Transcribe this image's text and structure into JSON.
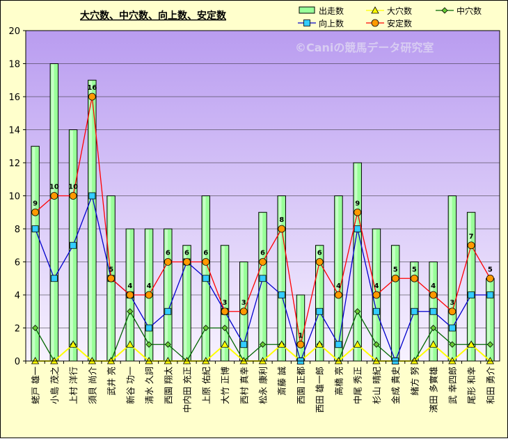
{
  "chart_data": {
    "type": "bar",
    "title": "大穴数、中穴数、向上数、安定数",
    "watermark": "©Caniの競馬データ研究室",
    "categories": [
      "蛯戸 雄一",
      "小島 茂之",
      "上村 洋行",
      "須貝 尚介",
      "武井 亮",
      "新谷 功一",
      "清水 久詞",
      "西園 翔太",
      "中内田 充正",
      "上原 佑紀",
      "大竹 正博",
      "西村 真幸",
      "松永 康利",
      "斎藤 誠",
      "西園 正都",
      "西田 雄一郎",
      "高橋 亮",
      "中尾 秀正",
      "杉山 晴紀",
      "金成 貴史",
      "緒方 努",
      "濱田 多實雄",
      "武 幸四郎",
      "尾形 和幸",
      "和田 勇介"
    ],
    "ylim": [
      0,
      20
    ],
    "yticks": [
      0,
      2,
      4,
      6,
      8,
      10,
      12,
      14,
      16,
      18,
      20
    ],
    "grid": true,
    "legend_position": "top-right",
    "series": [
      {
        "name": "出走数",
        "kind": "bar",
        "color": "#99ff99",
        "values": [
          13,
          18,
          14,
          17,
          10,
          8,
          8,
          8,
          7,
          10,
          7,
          6,
          9,
          10,
          4,
          7,
          10,
          12,
          8,
          7,
          6,
          6,
          10,
          9,
          5
        ]
      },
      {
        "name": "大穴数",
        "kind": "line",
        "color": "#ffff00",
        "marker": "triangle",
        "values": [
          0,
          0,
          1,
          0,
          0,
          1,
          0,
          0,
          0,
          0,
          1,
          0,
          0,
          1,
          0,
          1,
          0,
          1,
          0,
          0,
          0,
          1,
          0,
          1,
          0
        ]
      },
      {
        "name": "中穴数",
        "kind": "line",
        "color": "#006600",
        "marker": "diamond",
        "values": [
          2,
          0,
          1,
          0,
          0,
          3,
          1,
          1,
          0,
          2,
          2,
          0,
          1,
          1,
          0,
          1,
          0,
          3,
          1,
          0,
          0,
          2,
          1,
          1,
          1
        ]
      },
      {
        "name": "向上数",
        "kind": "line",
        "color": "#0000cc",
        "marker": "square",
        "values": [
          8,
          5,
          7,
          10,
          5,
          4,
          2,
          3,
          6,
          5,
          3,
          1,
          5,
          4,
          0,
          3,
          1,
          8,
          3,
          0,
          3,
          3,
          2,
          4,
          4
        ]
      },
      {
        "name": "安定数",
        "kind": "line",
        "color": "#ff0000",
        "marker": "circle",
        "values": [
          9,
          10,
          10,
          16,
          5,
          4,
          4,
          6,
          6,
          6,
          3,
          3,
          6,
          8,
          1,
          6,
          4,
          9,
          4,
          5,
          5,
          4,
          3,
          7,
          5
        ]
      }
    ]
  }
}
